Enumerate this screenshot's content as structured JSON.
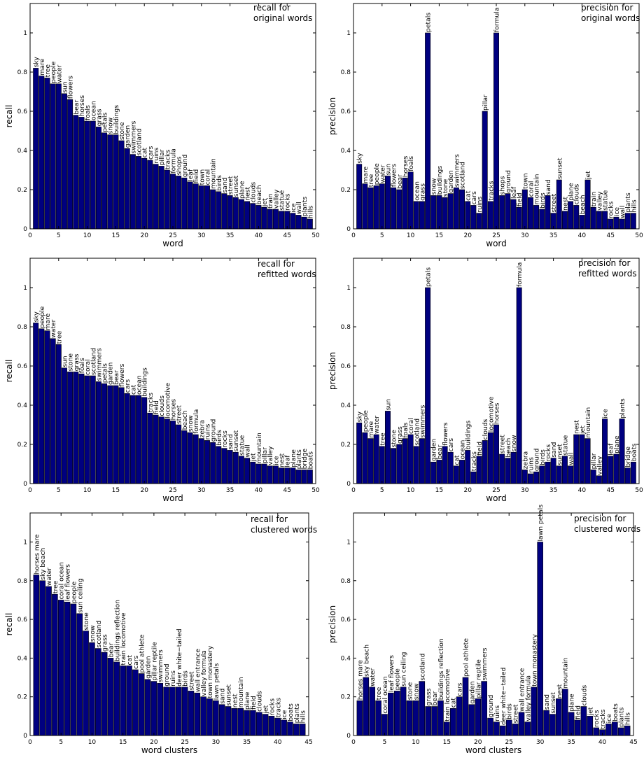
{
  "colors": {
    "bar_fill": "#000080",
    "bar_stroke": "#000000",
    "axes": "#000000",
    "background": "#ffffff"
  },
  "chart_data": [
    {
      "type": "bar",
      "grid": false,
      "title": "recall for\noriginal words",
      "xlabel": "word",
      "ylabel": "recall",
      "xlim": [
        0,
        50
      ],
      "ylim": [
        0,
        1.15
      ],
      "xticks": [
        0,
        5,
        10,
        15,
        20,
        25,
        30,
        35,
        40,
        45,
        50
      ],
      "yticks": [
        0,
        0.2,
        0.4,
        0.6,
        0.8,
        1
      ],
      "x": [
        1,
        2,
        3,
        4,
        5,
        6,
        7,
        8,
        9,
        10,
        11,
        12,
        13,
        14,
        15,
        16,
        17,
        18,
        19,
        20,
        21,
        22,
        23,
        24,
        25,
        26,
        27,
        28,
        29,
        30,
        31,
        32,
        33,
        34,
        35,
        36,
        37,
        38,
        39,
        40,
        41,
        42,
        43,
        44,
        45,
        46,
        47,
        48,
        49
      ],
      "values": [
        0.82,
        0.78,
        0.77,
        0.74,
        0.74,
        0.69,
        0.66,
        0.58,
        0.57,
        0.55,
        0.55,
        0.52,
        0.49,
        0.48,
        0.48,
        0.45,
        0.41,
        0.38,
        0.37,
        0.36,
        0.35,
        0.33,
        0.32,
        0.3,
        0.28,
        0.27,
        0.26,
        0.24,
        0.23,
        0.22,
        0.22,
        0.2,
        0.19,
        0.18,
        0.17,
        0.16,
        0.15,
        0.14,
        0.13,
        0.12,
        0.11,
        0.1,
        0.1,
        0.09,
        0.09,
        0.08,
        0.07,
        0.06,
        0.05
      ],
      "labels": [
        "sky",
        "mare",
        "tree",
        "people",
        "water",
        "sun",
        "flowers",
        "bear",
        "horses",
        "foals",
        "ocean",
        "grass",
        "petals",
        "snow",
        "buildings",
        "stone",
        "garden",
        "swimmers",
        "scotland",
        "cat",
        "cars",
        "ruins",
        "pillar",
        "tracks",
        "formula",
        "shops",
        "ground",
        "leaf",
        "field",
        "town",
        "coral",
        "mountain",
        "birds",
        "sand",
        "street",
        "sunset",
        "plane",
        "nest",
        "clouds",
        "beach",
        "jet",
        "train",
        "valley",
        "statue",
        "rocks",
        "ice",
        "wall",
        "plants",
        "hills"
      ]
    },
    {
      "type": "bar",
      "grid": false,
      "title": "precision for\noriginal words",
      "xlabel": "word",
      "ylabel": "precision",
      "xlim": [
        0,
        50
      ],
      "ylim": [
        0,
        1.15
      ],
      "xticks": [
        0,
        5,
        10,
        15,
        20,
        25,
        30,
        35,
        40,
        45,
        50
      ],
      "yticks": [
        0,
        0.2,
        0.4,
        0.6,
        0.8,
        1
      ],
      "x": [
        1,
        2,
        3,
        4,
        5,
        6,
        7,
        8,
        9,
        10,
        11,
        12,
        13,
        14,
        15,
        16,
        17,
        18,
        19,
        20,
        21,
        22,
        23,
        24,
        25,
        26,
        27,
        28,
        29,
        30,
        31,
        32,
        33,
        34,
        35,
        36,
        37,
        38,
        39,
        40,
        41,
        42,
        43,
        44,
        45,
        46,
        47,
        48,
        49
      ],
      "values": [
        0.33,
        0.23,
        0.21,
        0.22,
        0.23,
        0.27,
        0.21,
        0.2,
        0.26,
        0.29,
        0.14,
        0.14,
        1.0,
        0.17,
        0.17,
        0.16,
        0.18,
        0.21,
        0.2,
        0.14,
        0.12,
        0.08,
        0.6,
        0.14,
        1.0,
        0.17,
        0.18,
        0.15,
        0.11,
        0.2,
        0.16,
        0.12,
        0.1,
        0.17,
        0.08,
        0.25,
        0.09,
        0.14,
        0.12,
        0.07,
        0.25,
        0.11,
        0.09,
        0.09,
        0.05,
        0.06,
        0.05,
        0.08,
        0.08
      ],
      "labels": [
        "sky",
        "mare",
        "tree",
        "people",
        "water",
        "sun",
        "flowers",
        "bear",
        "horses",
        "foals",
        "ocean",
        "grass",
        "petals",
        "snow",
        "buildings",
        "stone",
        "garden",
        "swimmers",
        "scotland",
        "cat",
        "cars",
        "ruins",
        "pillar",
        "tracks",
        "formula",
        "shops",
        "ground",
        "leaf",
        "field",
        "town",
        "coral",
        "mountain",
        "birds",
        "sand",
        "street",
        "sunset",
        "nest",
        "plane",
        "clouds",
        "beach",
        "jet",
        "train",
        "valley",
        "statue",
        "rocks",
        "ice",
        "wall",
        "plants",
        "hills"
      ]
    },
    {
      "type": "bar",
      "grid": false,
      "title": "recall for\nrefitted words",
      "xlabel": "word",
      "ylabel": "recall",
      "xlim": [
        0,
        50
      ],
      "ylim": [
        0,
        1.15
      ],
      "xticks": [
        0,
        5,
        10,
        15,
        20,
        25,
        30,
        35,
        40,
        45,
        50
      ],
      "yticks": [
        0,
        0.2,
        0.4,
        0.6,
        0.8,
        1
      ],
      "x": [
        1,
        2,
        3,
        4,
        5,
        6,
        7,
        8,
        9,
        10,
        11,
        12,
        13,
        14,
        15,
        16,
        17,
        18,
        19,
        20,
        21,
        22,
        23,
        24,
        25,
        26,
        27,
        28,
        29,
        30,
        31,
        32,
        33,
        34,
        35,
        36,
        37,
        38,
        39,
        40,
        41,
        42,
        43,
        44,
        45,
        46,
        47,
        48,
        49
      ],
      "values": [
        0.82,
        0.79,
        0.78,
        0.74,
        0.71,
        0.59,
        0.57,
        0.57,
        0.56,
        0.55,
        0.55,
        0.52,
        0.51,
        0.5,
        0.5,
        0.49,
        0.46,
        0.45,
        0.45,
        0.44,
        0.36,
        0.35,
        0.34,
        0.33,
        0.32,
        0.3,
        0.27,
        0.26,
        0.25,
        0.23,
        0.22,
        0.21,
        0.19,
        0.18,
        0.17,
        0.16,
        0.14,
        0.13,
        0.11,
        0.1,
        0.1,
        0.09,
        0.09,
        0.08,
        0.08,
        0.08,
        0.07,
        0.07,
        0.07
      ],
      "labels": [
        "sky",
        "people",
        "mare",
        "water",
        "tree",
        "sun",
        "stone",
        "grass",
        "foals",
        "coral",
        "scotland",
        "swimmers",
        "petals",
        "garden",
        "bear",
        "flowers",
        "cars",
        "cat",
        "ocean",
        "buildings",
        "tracks",
        "field",
        "clouds",
        "locomotive",
        "horses",
        "street",
        "beach",
        "snow",
        "formula",
        "zebra",
        "ruins",
        "ground",
        "birds",
        "rocks",
        "sand",
        "sunset",
        "statue",
        "wall",
        "jet",
        "mountain",
        "pillar",
        "valley",
        "ice",
        "nest",
        "leaf",
        "plane",
        "plants",
        "bridge",
        "boats"
      ]
    },
    {
      "type": "bar",
      "grid": false,
      "title": "precision for\nrefitted words",
      "xlabel": "word",
      "ylabel": "precision",
      "xlim": [
        0,
        50
      ],
      "ylim": [
        0,
        1.15
      ],
      "xticks": [
        0,
        5,
        10,
        15,
        20,
        25,
        30,
        35,
        40,
        45,
        50
      ],
      "yticks": [
        0,
        0.2,
        0.4,
        0.6,
        0.8,
        1
      ],
      "x": [
        1,
        2,
        3,
        4,
        5,
        6,
        7,
        8,
        9,
        10,
        11,
        12,
        13,
        14,
        15,
        16,
        17,
        18,
        19,
        20,
        21,
        22,
        23,
        24,
        25,
        26,
        27,
        28,
        29,
        30,
        31,
        32,
        33,
        34,
        35,
        36,
        37,
        38,
        39,
        40,
        41,
        42,
        43,
        44,
        45,
        46,
        47,
        48,
        49
      ],
      "values": [
        0.31,
        0.26,
        0.23,
        0.25,
        0.19,
        0.37,
        0.18,
        0.2,
        0.23,
        0.25,
        0.19,
        0.23,
        1.0,
        0.11,
        0.12,
        0.19,
        0.16,
        0.09,
        0.12,
        0.17,
        0.06,
        0.14,
        0.22,
        0.26,
        0.3,
        0.15,
        0.13,
        0.16,
        1.0,
        0.07,
        0.05,
        0.06,
        0.09,
        0.11,
        0.13,
        0.09,
        0.14,
        0.09,
        0.25,
        0.25,
        0.23,
        0.07,
        0.04,
        0.33,
        0.14,
        0.15,
        0.33,
        0.08,
        0.11
      ],
      "labels": [
        "sky",
        "people",
        "mare",
        "water",
        "tree",
        "sun",
        "stone",
        "grass",
        "foals",
        "coral",
        "scotland",
        "swimmers",
        "petals",
        "garden",
        "bear",
        "flowers",
        "cars",
        "cat",
        "ocean",
        "buildings",
        "tracks",
        "field",
        "clouds",
        "locomotive",
        "horses",
        "street",
        "beach",
        "snow",
        "formula",
        "zebra",
        "ruins",
        "ground",
        "birds",
        "rocks",
        "sand",
        "sunset",
        "statue",
        "wall",
        "nest",
        "jet",
        "mountain",
        "pillar",
        "valley",
        "ice",
        "leaf",
        "plane",
        "plants",
        "bridge",
        "boats"
      ]
    },
    {
      "type": "bar",
      "grid": false,
      "title": "recall for\nclustered words",
      "xlabel": "word clusters",
      "ylabel": "recall",
      "xlim": [
        0,
        45
      ],
      "ylim": [
        0,
        1.15
      ],
      "xticks": [
        0,
        5,
        10,
        15,
        20,
        25,
        30,
        35,
        40,
        45
      ],
      "yticks": [
        0,
        0.2,
        0.4,
        0.6,
        0.8,
        1
      ],
      "x": [
        1,
        2,
        3,
        4,
        5,
        6,
        7,
        8,
        9,
        10,
        11,
        12,
        13,
        14,
        15,
        16,
        17,
        18,
        19,
        20,
        21,
        22,
        23,
        24,
        25,
        26,
        27,
        28,
        29,
        30,
        31,
        32,
        33,
        34,
        35,
        36,
        37,
        38,
        39,
        40,
        41,
        42,
        43,
        44
      ],
      "values": [
        0.83,
        0.8,
        0.77,
        0.73,
        0.7,
        0.69,
        0.68,
        0.63,
        0.54,
        0.48,
        0.45,
        0.43,
        0.4,
        0.38,
        0.36,
        0.36,
        0.34,
        0.32,
        0.29,
        0.28,
        0.27,
        0.25,
        0.25,
        0.25,
        0.25,
        0.23,
        0.22,
        0.2,
        0.19,
        0.18,
        0.16,
        0.15,
        0.14,
        0.14,
        0.13,
        0.13,
        0.12,
        0.11,
        0.1,
        0.09,
        0.08,
        0.07,
        0.06,
        0.06
      ],
      "labels": [
        "horses mare",
        "sky beach",
        "water",
        "tree",
        "coral ocean",
        "leaf flowers",
        "people",
        "sun ceiling",
        "stone",
        "snow",
        "scotland",
        "grass",
        "bear",
        "buildings reflection",
        "train locomotive",
        "cat",
        "cars",
        "pool athlete",
        "garden",
        "pillar reptile",
        "swimmers",
        "ground",
        "ruins",
        "deer white−tailed",
        "birds",
        "street",
        "wall entrance",
        "valley formula",
        "town monastery",
        "lawn petals",
        "sand",
        "sunset",
        "nest",
        "mountain",
        "plane",
        "field",
        "clouds",
        "jet",
        "rocks",
        "tracks",
        "ice",
        "boats",
        "plants",
        "hills"
      ]
    },
    {
      "type": "bar",
      "grid": false,
      "title": "precision for\nclustered words",
      "xlabel": "word clusters",
      "ylabel": "precision",
      "xlim": [
        0,
        45
      ],
      "ylim": [
        0,
        1.15
      ],
      "xticks": [
        0,
        5,
        10,
        15,
        20,
        25,
        30,
        35,
        40,
        45
      ],
      "yticks": [
        0,
        0.2,
        0.4,
        0.6,
        0.8,
        1
      ],
      "x": [
        1,
        2,
        3,
        4,
        5,
        6,
        7,
        8,
        9,
        10,
        11,
        12,
        13,
        14,
        15,
        16,
        17,
        18,
        19,
        20,
        21,
        22,
        23,
        24,
        25,
        26,
        27,
        28,
        29,
        30,
        31,
        32,
        33,
        34,
        35,
        36,
        37,
        38,
        39,
        40,
        41,
        42,
        43,
        44
      ],
      "values": [
        0.18,
        0.3,
        0.25,
        0.18,
        0.11,
        0.22,
        0.23,
        0.25,
        0.18,
        0.18,
        0.28,
        0.15,
        0.15,
        0.18,
        0.07,
        0.14,
        0.2,
        0.3,
        0.16,
        0.19,
        0.28,
        0.09,
        0.07,
        0.05,
        0.08,
        0.06,
        0.12,
        0.07,
        0.25,
        1.0,
        0.13,
        0.11,
        0.19,
        0.24,
        0.12,
        0.08,
        0.15,
        0.1,
        0.04,
        0.03,
        0.06,
        0.07,
        0.04,
        0.05
      ],
      "labels": [
        "horses mare",
        "sky beach",
        "water",
        "tree",
        "coral ocean",
        "leaf flowers",
        "people",
        "sun ceiling",
        "stone",
        "snow",
        "scotland",
        "grass",
        "bear",
        "buildings reflection",
        "train locomotive",
        "cat",
        "cars",
        "pool athlete",
        "garden",
        "pillar reptile",
        "swimmers",
        "ground",
        "ruins",
        "deer white−tailed",
        "birds",
        "street",
        "wall entrance",
        "valley formula",
        "town monastery",
        "lawn petals",
        "sand",
        "sunset",
        "nest",
        "mountain",
        "plane",
        "field",
        "clouds",
        "jet",
        "rocks",
        "tracks",
        "ice",
        "boats",
        "plants",
        "hills"
      ]
    }
  ]
}
